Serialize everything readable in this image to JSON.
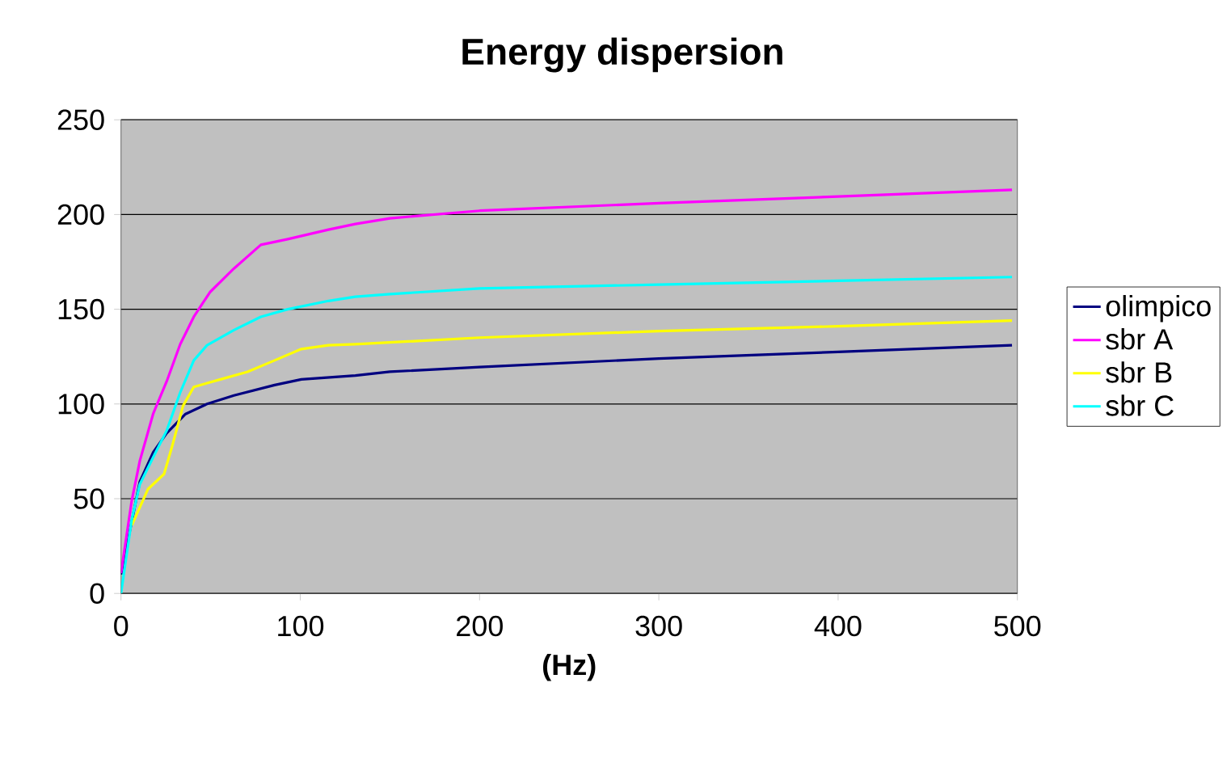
{
  "chart_data": {
    "type": "line",
    "title": "Energy dispersion",
    "xlabel": "(Hz)",
    "xlim": [
      0,
      500
    ],
    "ylim": [
      0,
      250
    ],
    "xticks": [
      0,
      100,
      200,
      300,
      400,
      500
    ],
    "yticks": [
      0,
      50,
      100,
      150,
      200,
      250
    ],
    "grid": "y",
    "legend": "right",
    "marker": "none",
    "line_style": "solid",
    "series": [
      {
        "name": "olimpico",
        "color": "#000080",
        "x": [
          0,
          10.5,
          18,
          25.5,
          36,
          48,
          63,
          85.7,
          100.6,
          130.7,
          150,
          200,
          300,
          400,
          497
        ],
        "values": [
          10,
          59,
          74.6,
          84.6,
          94.7,
          100,
          104.5,
          110,
          113,
          115,
          117,
          119.5,
          124,
          127.5,
          131
        ]
      },
      {
        "name": "sbr A",
        "color": "#ff00ff",
        "x": [
          0,
          6,
          10.5,
          18,
          25.5,
          33,
          40.6,
          49.6,
          63,
          78,
          93,
          115.7,
          130.7,
          150,
          200,
          300,
          400,
          497
        ],
        "values": [
          10.7,
          49,
          70,
          95,
          112,
          131.5,
          146,
          159,
          171.5,
          184,
          187,
          192,
          195,
          198,
          202,
          206,
          209.5,
          213
        ]
      },
      {
        "name": "sbr B",
        "color": "#ffff00",
        "x": [
          6,
          15,
          24,
          28.5,
          34.6,
          40.6,
          55.5,
          70.6,
          85.7,
          100.6,
          115.7,
          130.7,
          200,
          300,
          400,
          497
        ],
        "values": [
          36,
          55,
          63,
          77.6,
          99,
          109,
          113,
          117,
          123,
          129,
          131,
          131.5,
          135,
          138.5,
          141,
          144
        ]
      },
      {
        "name": "sbr C",
        "color": "#00ffff",
        "x": [
          0,
          6,
          10.5,
          18,
          25.5,
          33,
          40.6,
          48,
          63,
          78,
          93,
          115.7,
          130.7,
          150,
          200,
          300,
          400,
          497
        ],
        "values": [
          0,
          39,
          57.6,
          72,
          86,
          106,
          123,
          131,
          139,
          146,
          150,
          154.4,
          156.6,
          158,
          161,
          163,
          165,
          167
        ]
      }
    ]
  }
}
